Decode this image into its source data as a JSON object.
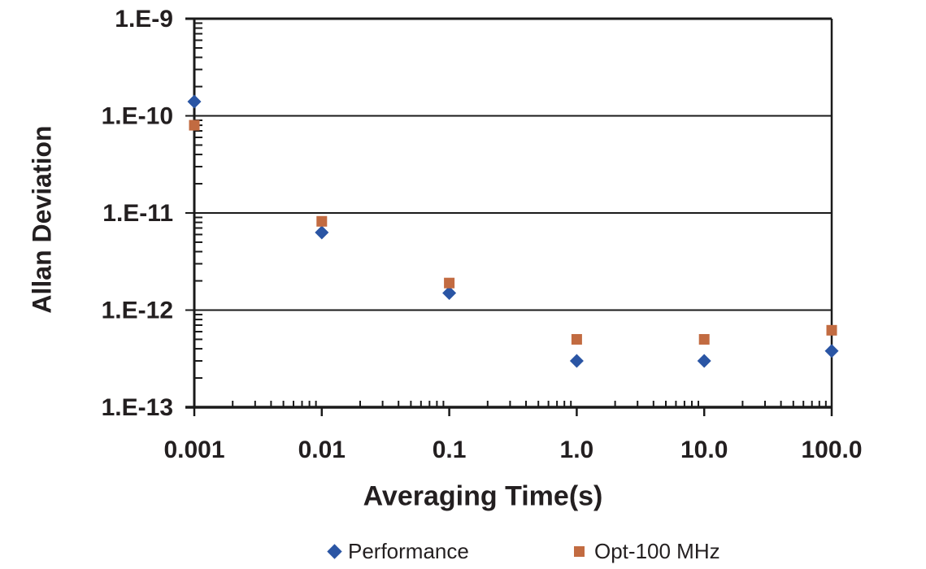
{
  "chart_data": {
    "type": "scatter",
    "title": "",
    "xlabel": "Averaging Time(s)",
    "ylabel": "Allan Deviation",
    "x_scale": "log",
    "y_scale": "log",
    "xlim": [
      0.001,
      100
    ],
    "ylim": [
      1e-13,
      1e-09
    ],
    "grid": "horizontal-major",
    "legend_position": "bottom",
    "x_tick_values": [
      0.001,
      0.01,
      0.1,
      1,
      10,
      100
    ],
    "x_tick_labels": [
      "0.001",
      "0.01",
      "0.1",
      "1.0",
      "10.0",
      "100.0"
    ],
    "y_tick_values": [
      1e-09,
      1e-10,
      1e-11,
      1e-12,
      1e-13
    ],
    "y_tick_labels": [
      "1.E-9",
      "1.E-10",
      "1.E-11",
      "1.E-12",
      "1.E-13"
    ],
    "axis_color": "#1a1a1a",
    "text_color": "#231f20",
    "series": [
      {
        "name": "Performance",
        "marker": "diamond",
        "color": "#2a55a4",
        "x": [
          0.001,
          0.01,
          0.1,
          1.0,
          10.0,
          100.0
        ],
        "y": [
          1.4e-10,
          6.3e-12,
          1.5e-12,
          3e-13,
          3e-13,
          3.8e-13
        ]
      },
      {
        "name": "Opt-100 MHz",
        "marker": "square",
        "color": "#c26b41",
        "x": [
          0.001,
          0.01,
          0.1,
          1.0,
          10.0,
          100.0
        ],
        "y": [
          8e-11,
          8.2e-12,
          1.9e-12,
          5e-13,
          5e-13,
          6.2e-13
        ]
      }
    ]
  }
}
